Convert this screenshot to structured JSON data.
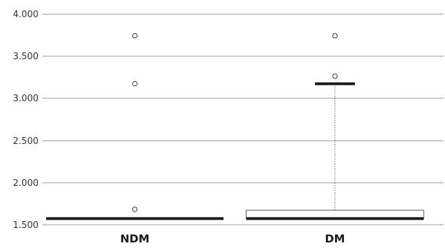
{
  "chart_data": {
    "type": "boxplot",
    "title": "",
    "xlabel": "",
    "ylabel": "",
    "ylim": [
      1500,
      4000
    ],
    "y_ticks": [
      1500,
      2000,
      2500,
      3000,
      3500,
      4000
    ],
    "y_tick_labels": [
      "1.500",
      "2.000",
      "2.500",
      "3.000",
      "3.500",
      "4.000"
    ],
    "grid": true,
    "categories": [
      "NDM",
      "DM"
    ],
    "boxes": [
      {
        "category": "NDM",
        "min": 1570,
        "q1": 1570,
        "median": 1570,
        "q3": 1570,
        "max": 1570,
        "outliers": [
          1680,
          3170,
          3740
        ]
      },
      {
        "category": "DM",
        "min": 1570,
        "q1": 1570,
        "median": 1570,
        "q3": 1670,
        "max": 3170,
        "outliers": [
          3260,
          3740
        ]
      }
    ],
    "colors": {
      "grid": "#9e9e9e",
      "median": "#1a1a1a",
      "box_fill": "#ffffff",
      "whisker": "#555555"
    }
  }
}
